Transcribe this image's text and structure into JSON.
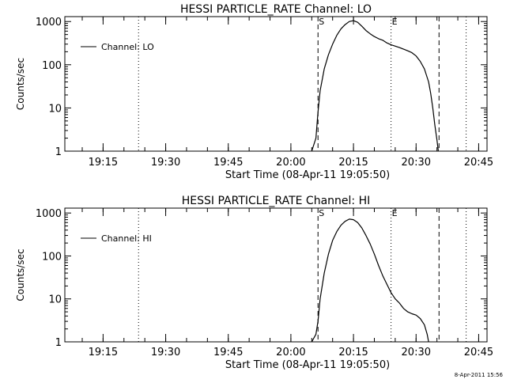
{
  "footer": {
    "timestamp": "8-Apr-2011 15:56"
  },
  "chart_data": [
    {
      "type": "line",
      "title": "HESSI PARTICLE_RATE Channel: LO",
      "xlabel": "Start Time (08-Apr-11 19:05:50)",
      "ylabel": "Counts/sec",
      "y_scale": "log",
      "xlim": [
        "19:05:50",
        "20:47:00"
      ],
      "ylim": [
        1,
        1300
      ],
      "x_ticks": [
        "19:15",
        "19:30",
        "19:45",
        "20:00",
        "20:15",
        "20:30",
        "20:45"
      ],
      "y_ticks": [
        "1",
        "10",
        "100",
        "1000"
      ],
      "legend": {
        "label": "Channel: LO",
        "position": "top-left"
      },
      "markers": [
        {
          "time": "19:23:30",
          "style": "dotted",
          "label": ""
        },
        {
          "time": "20:06:30",
          "style": "dashed",
          "label": "S"
        },
        {
          "time": "20:24:00",
          "style": "dotted",
          "label": "E"
        },
        {
          "time": "20:35:30",
          "style": "dashed",
          "label": ""
        },
        {
          "time": "20:42:00",
          "style": "dotted",
          "label": ""
        }
      ],
      "series": [
        {
          "name": "Channel: LO",
          "x": [
            "20:05:00",
            "20:06:00",
            "20:06:30",
            "20:07:00",
            "20:08:00",
            "20:09:00",
            "20:10:00",
            "20:11:00",
            "20:12:00",
            "20:13:00",
            "20:14:00",
            "20:15:00",
            "20:16:00",
            "20:17:00",
            "20:18:00",
            "20:19:00",
            "20:20:00",
            "20:21:00",
            "20:22:00",
            "20:23:00",
            "20:24:00",
            "20:25:00",
            "20:26:00",
            "20:27:00",
            "20:28:00",
            "20:29:00",
            "20:30:00",
            "20:31:00",
            "20:32:00",
            "20:33:00",
            "20:33:30",
            "20:34:00",
            "20:34:30",
            "20:35:00",
            "20:35:20"
          ],
          "y": [
            1,
            2,
            8,
            25,
            80,
            170,
            300,
            480,
            680,
            850,
            1000,
            1050,
            960,
            780,
            620,
            520,
            450,
            400,
            370,
            320,
            290,
            270,
            250,
            230,
            210,
            190,
            160,
            120,
            80,
            40,
            22,
            10,
            4,
            1.8,
            1
          ]
        }
      ]
    },
    {
      "type": "line",
      "title": "HESSI PARTICLE_RATE Channel: HI",
      "xlabel": "Start Time (08-Apr-11 19:05:50)",
      "ylabel": "Counts/sec",
      "y_scale": "log",
      "xlim": [
        "19:05:50",
        "20:47:00"
      ],
      "ylim": [
        1,
        1300
      ],
      "x_ticks": [
        "19:15",
        "19:30",
        "19:45",
        "20:00",
        "20:15",
        "20:30",
        "20:45"
      ],
      "y_ticks": [
        "1",
        "10",
        "100",
        "1000"
      ],
      "legend": {
        "label": "Channel: HI",
        "position": "top-left"
      },
      "markers": [
        {
          "time": "19:23:30",
          "style": "dotted",
          "label": ""
        },
        {
          "time": "20:06:30",
          "style": "dashed",
          "label": "S"
        },
        {
          "time": "20:24:00",
          "style": "dotted",
          "label": "E"
        },
        {
          "time": "20:35:30",
          "style": "dashed",
          "label": ""
        },
        {
          "time": "20:42:00",
          "style": "dotted",
          "label": ""
        }
      ],
      "series": [
        {
          "name": "Channel: HI",
          "x": [
            "20:05:00",
            "20:06:00",
            "20:06:30",
            "20:07:00",
            "20:08:00",
            "20:09:00",
            "20:10:00",
            "20:11:00",
            "20:12:00",
            "20:13:00",
            "20:14:00",
            "20:15:00",
            "20:16:00",
            "20:17:00",
            "20:18:00",
            "20:19:00",
            "20:20:00",
            "20:21:00",
            "20:22:00",
            "20:23:00",
            "20:24:00",
            "20:25:00",
            "20:26:00",
            "20:27:00",
            "20:28:00",
            "20:29:00",
            "20:30:00",
            "20:31:00",
            "20:32:00",
            "20:32:40",
            "20:33:00"
          ],
          "y": [
            1,
            1.5,
            3,
            10,
            40,
            110,
            230,
            370,
            520,
            640,
            720,
            700,
            600,
            450,
            300,
            190,
            110,
            60,
            35,
            22,
            14,
            10,
            8,
            6,
            5,
            4.5,
            4.2,
            3.5,
            2.5,
            1.5,
            1
          ]
        }
      ]
    }
  ]
}
